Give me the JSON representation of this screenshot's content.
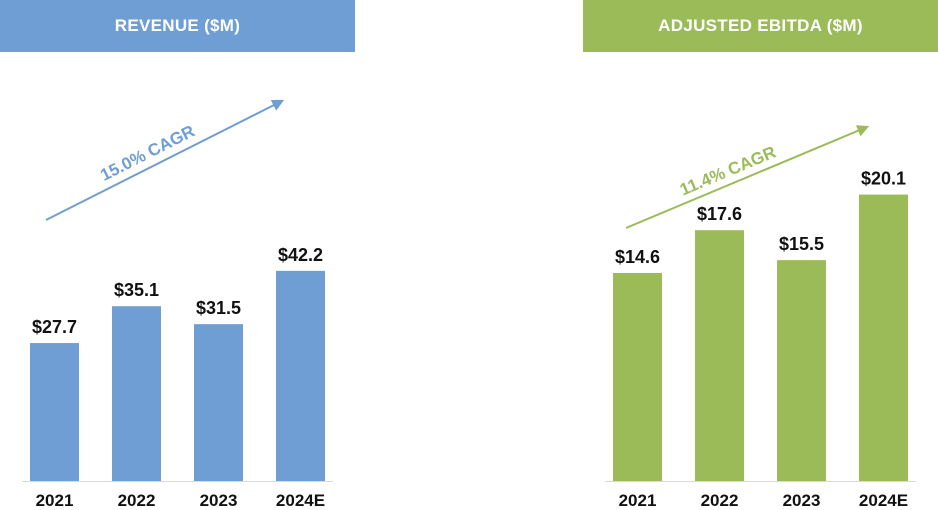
{
  "chart_data": [
    {
      "type": "bar",
      "title": "REVENUE ($M)",
      "categories": [
        "2021",
        "2022",
        "2023",
        "2024E"
      ],
      "values": [
        27.7,
        35.1,
        31.5,
        42.2
      ],
      "value_labels": [
        "$27.7",
        "$35.1",
        "$31.5",
        "$42.2"
      ],
      "annotation": "15.0% CAGR",
      "ylim": [
        0,
        50
      ],
      "color": "#6F9ED5"
    },
    {
      "type": "bar",
      "title": "ADJUSTED EBITDA ($M)",
      "categories": [
        "2021",
        "2022",
        "2023",
        "2024E"
      ],
      "values": [
        14.6,
        17.6,
        15.5,
        20.1
      ],
      "value_labels": [
        "$14.6",
        "$17.6",
        "$15.5",
        "$20.1"
      ],
      "annotation": "11.4% CAGR",
      "ylim": [
        0,
        25
      ],
      "color": "#9BBB59"
    }
  ]
}
